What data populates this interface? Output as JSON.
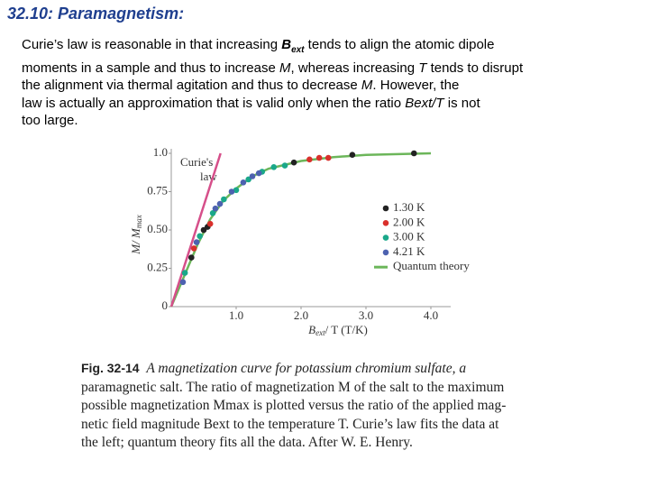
{
  "title": "32.10: Paramagnetism:",
  "paragraph": [
    "Curie’s law is reasonable in that increasing ",
    "B",
    "ext",
    " tends to align the atomic dipole",
    "moments in a sample and thus to increase ",
    "M",
    ", whereas increasing ",
    "T",
    " tends to disrupt",
    "the alignment via thermal agitation and thus to decrease ",
    "M",
    ". However, the",
    "law is actually an approximation that is valid only when the ratio ",
    "Bext/T",
    " is not",
    "too large."
  ],
  "chart_data": {
    "type": "scatter",
    "xlabel": [
      "B",
      "ext",
      "/ T (T/K)"
    ],
    "ylabel": [
      "M/ M",
      "max"
    ],
    "annotations": [
      "Curie's",
      "law"
    ],
    "xlim": [
      0,
      4.2
    ],
    "ylim": [
      0,
      1.0
    ],
    "xticks": [
      {
        "value": 1,
        "label": "1.0"
      },
      {
        "value": 2,
        "label": "2.0"
      },
      {
        "value": 3,
        "label": "3.0"
      },
      {
        "value": 4,
        "label": "4.0"
      }
    ],
    "yticks": [
      0,
      0.25,
      {
        "value": 0.5,
        "label": "0.50"
      },
      0.75,
      {
        "value": 1,
        "label": "1.0"
      }
    ],
    "series": [
      {
        "name": "1.30 K",
        "color": "#222222",
        "x": [
          0.31,
          0.5,
          0.56,
          1.89,
          2.79,
          3.74
        ],
        "values": [
          0.32,
          0.5,
          0.52,
          0.94,
          0.99,
          1.0
        ]
      },
      {
        "name": "2.00 K",
        "color": "#d9302c",
        "x": [
          0.35,
          0.6,
          2.13,
          2.28,
          2.42
        ],
        "values": [
          0.38,
          0.54,
          0.96,
          0.97,
          0.97
        ]
      },
      {
        "name": "3.00 K",
        "color": "#1aa88a",
        "x": [
          0.21,
          0.44,
          0.64,
          0.81,
          1.0,
          1.19,
          1.4,
          1.58,
          1.75
        ],
        "values": [
          0.22,
          0.46,
          0.61,
          0.7,
          0.76,
          0.83,
          0.88,
          0.91,
          0.92
        ]
      },
      {
        "name": "4.21 K",
        "color": "#4d62b0",
        "x": [
          0.18,
          0.39,
          0.68,
          0.75,
          0.93,
          1.11,
          1.25,
          1.35
        ],
        "values": [
          0.16,
          0.42,
          0.64,
          0.67,
          0.75,
          0.81,
          0.85,
          0.87
        ]
      },
      {
        "name": "Quantum theory",
        "color": "#6cb65a",
        "style": "line",
        "x": [
          0,
          0.2,
          0.4,
          0.6,
          0.8,
          1.0,
          1.25,
          1.5,
          2.0,
          2.5,
          3.0,
          3.5,
          4.0
        ],
        "values": [
          0,
          0.2,
          0.4,
          0.57,
          0.69,
          0.77,
          0.85,
          0.9,
          0.95,
          0.975,
          0.99,
          0.995,
          1.0
        ]
      },
      {
        "color": "#d64f8a",
        "style": "line",
        "x": [
          0,
          0.76
        ],
        "values": [
          0,
          1.0
        ]
      }
    ]
  },
  "caption": {
    "label": "Fig. 32-14",
    "lines": [
      "A magnetization curve for potassium chromium sulfate, a",
      "paramagnetic salt. The ratio of magnetization M of the salt to the maximum",
      "possible magnetization Mmax is plotted versus the ratio of the applied mag-",
      "netic field magnitude Bext to the temperature T. Curie’s law fits the data at",
      "the left; quantum theory fits all the data. After W. E. Henry."
    ]
  }
}
